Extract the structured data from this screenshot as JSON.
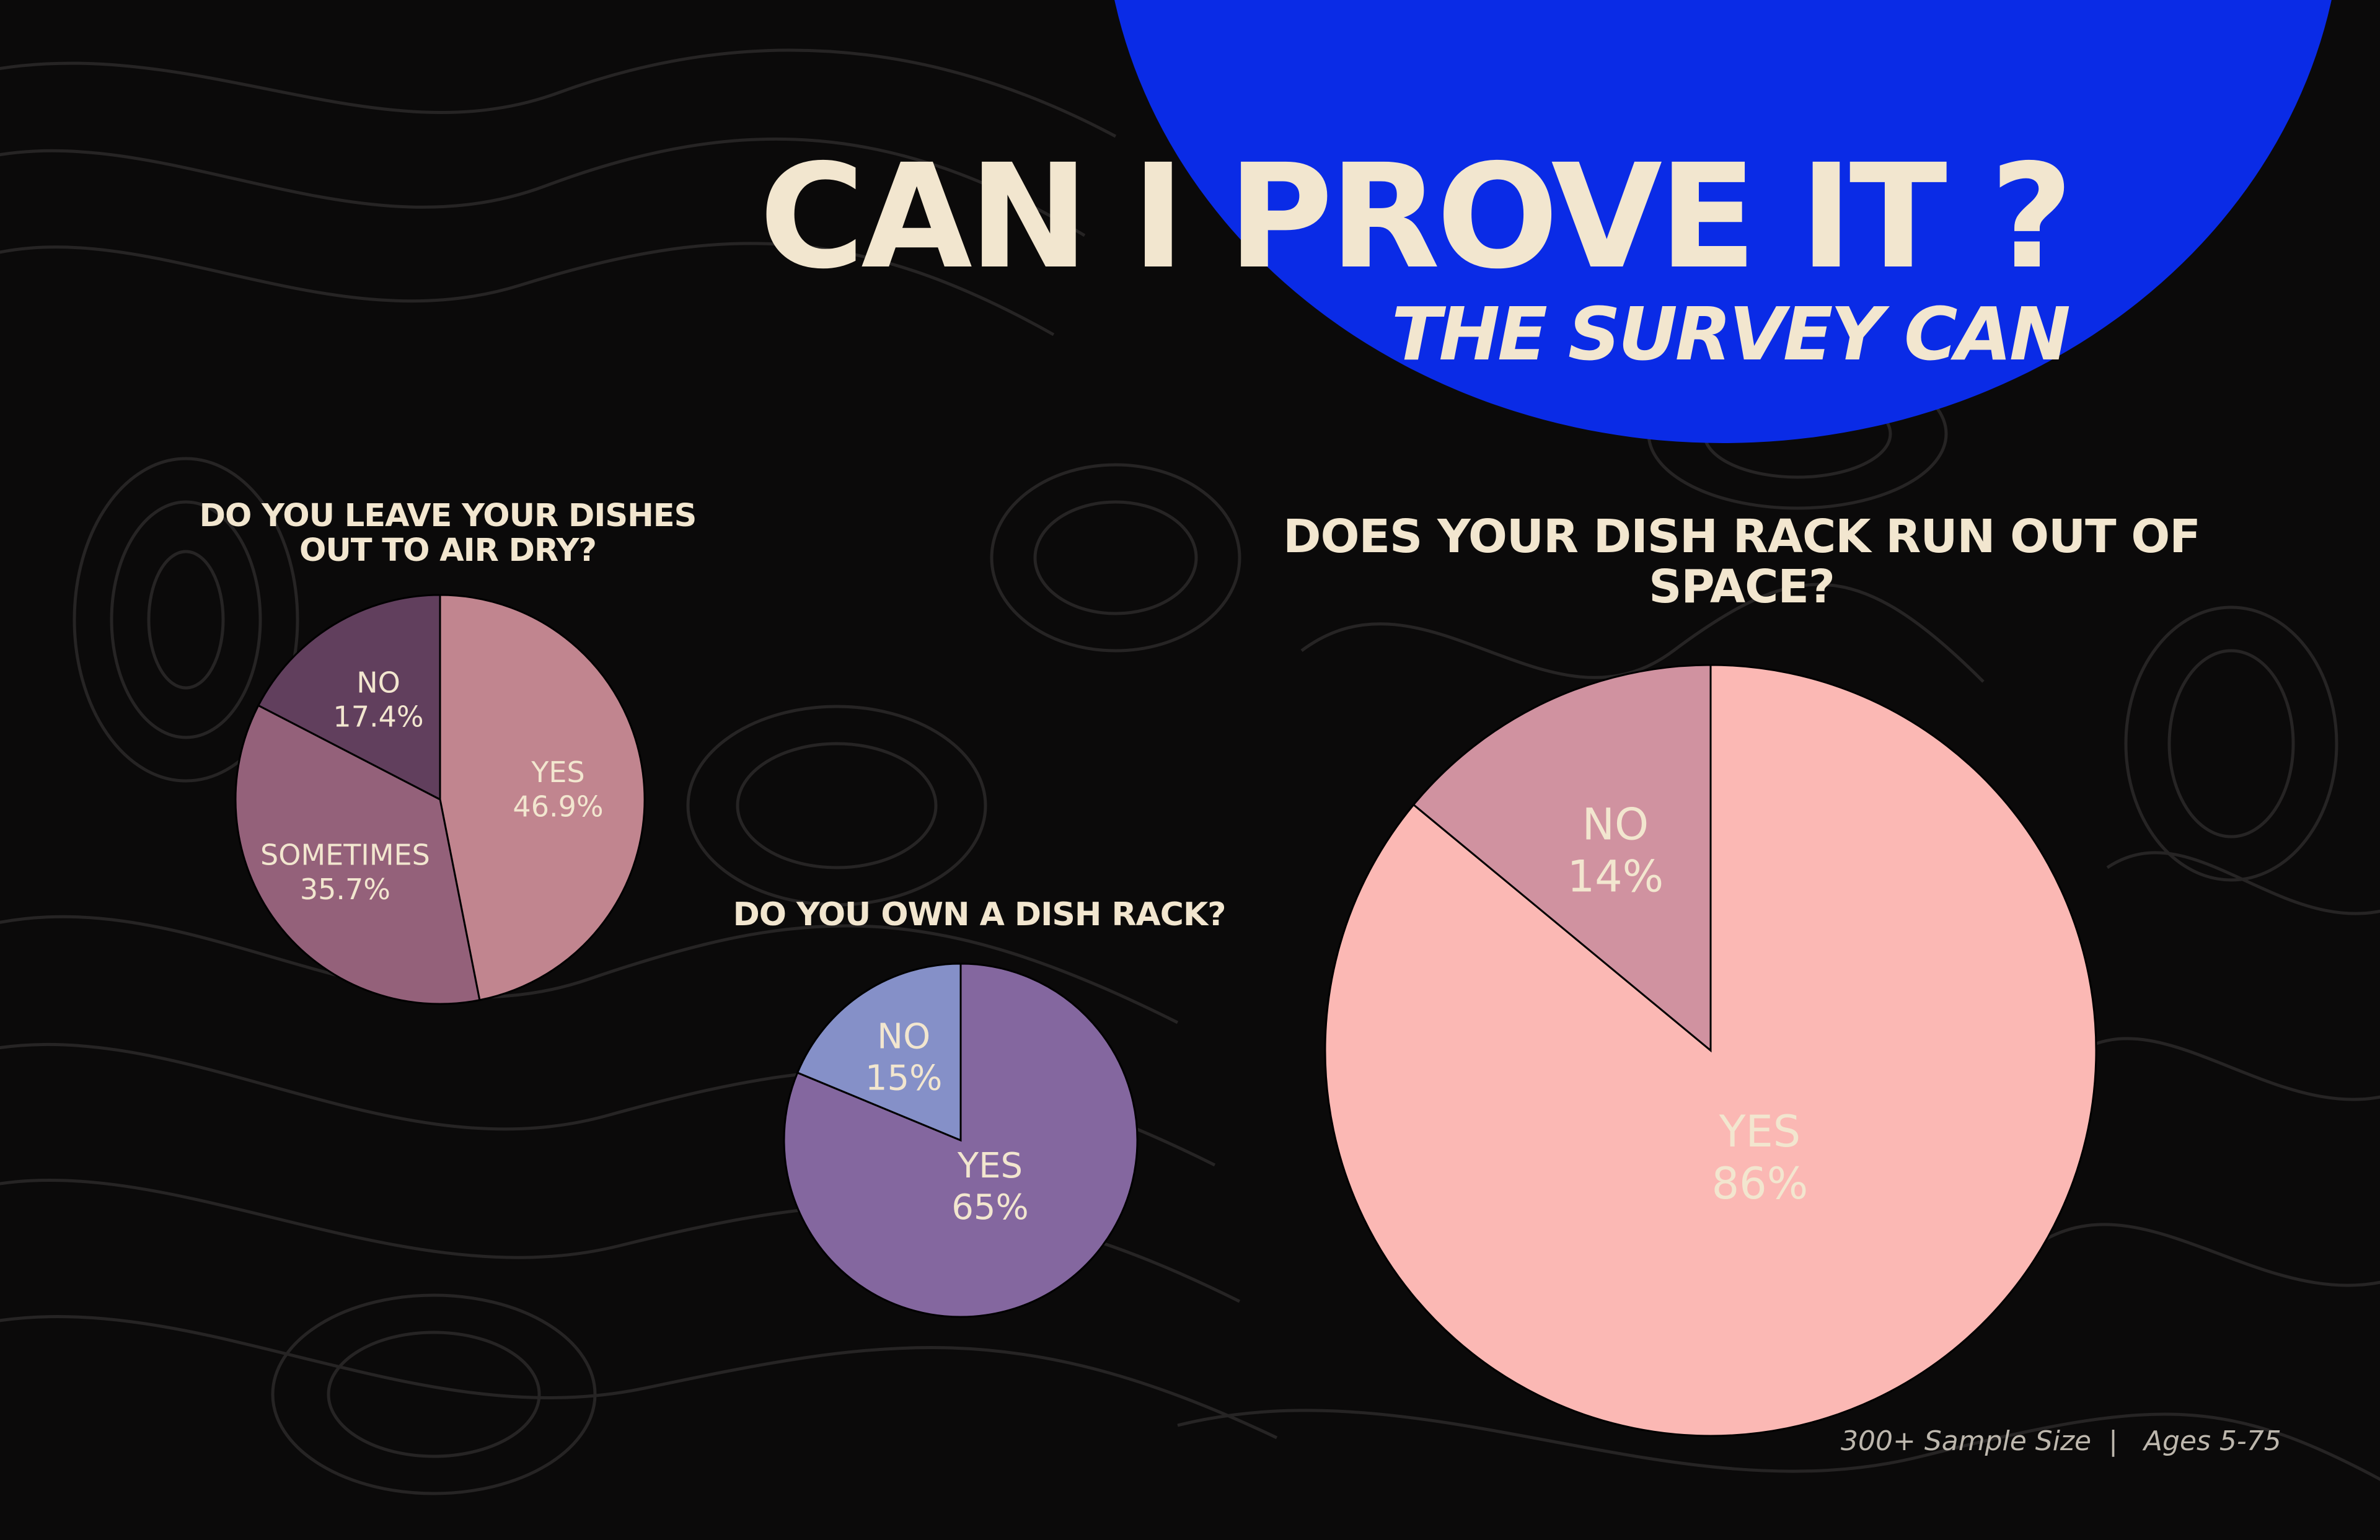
{
  "colors": {
    "background": "#0b0a0a",
    "contour": "#262424",
    "blob": "#0a2be6",
    "cream": "#f2e6cf",
    "footer_text": "#bdb7ad",
    "pie_outline": "#000000"
  },
  "header": {
    "title": "CAN I PROVE IT ?",
    "subtitle": "THE SURVEY CAN"
  },
  "footer": {
    "sample": "300+ Sample Size",
    "separator": "|",
    "ages": "Ages 5-75"
  },
  "chart_data": [
    {
      "type": "pie",
      "title": "DO YOU LEAVE YOUR DISHES\nOUT TO AIR DRY?",
      "slices": [
        {
          "label": "YES",
          "value": 46.9,
          "value_label": "46.9%",
          "color": "#c1858f"
        },
        {
          "label": "SOMETIMES",
          "value": 35.7,
          "value_label": "35.7%",
          "color": "#94617a"
        },
        {
          "label": "NO",
          "value": 17.4,
          "value_label": "17.4%",
          "color": "#613f5d"
        }
      ]
    },
    {
      "type": "pie",
      "title": "DO YOU OWN A DISH RACK?",
      "slices": [
        {
          "label": "YES",
          "value": 65,
          "value_label": "65%",
          "color": "#84679f"
        },
        {
          "label": "NO",
          "value": 15,
          "value_label": "15%",
          "color": "#8590c8"
        }
      ]
    },
    {
      "type": "pie",
      "title": "DOES YOUR DISH RACK RUN OUT OF\nSPACE?",
      "slices": [
        {
          "label": "YES",
          "value": 86,
          "value_label": "86%",
          "color": "#fbb8b4"
        },
        {
          "label": "NO",
          "value": 14,
          "value_label": "14%",
          "color": "#d092a0"
        }
      ]
    }
  ]
}
